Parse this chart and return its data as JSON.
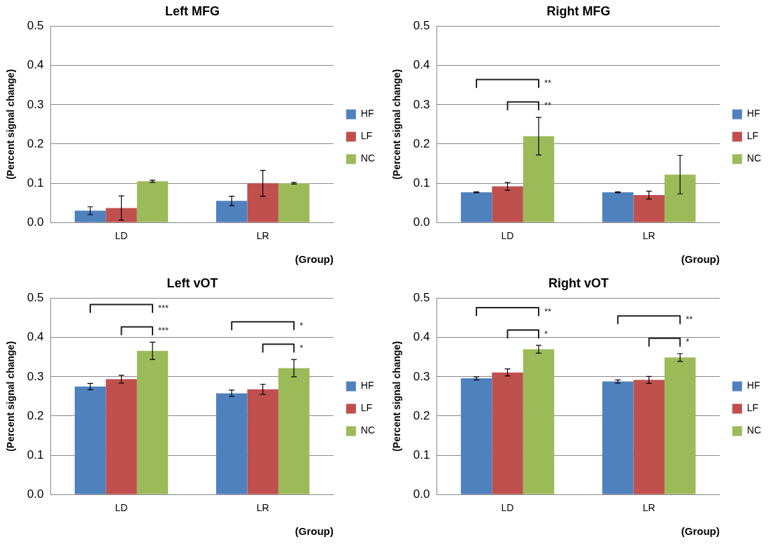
{
  "chart_data": [
    {
      "type": "bar",
      "title": "Left MFG",
      "xlabel": "(Group)",
      "ylabel": "(Percent signal change)",
      "categories": [
        "LD",
        "LR"
      ],
      "series": [
        {
          "name": "HF",
          "color": "#4f81bd",
          "values": [
            0.03,
            0.055
          ],
          "errors": [
            0.01,
            0.012
          ]
        },
        {
          "name": "LF",
          "color": "#c0504d",
          "values": [
            0.037,
            0.1
          ],
          "errors": [
            0.031,
            0.033
          ]
        },
        {
          "name": "NC",
          "color": "#9bbb59",
          "values": [
            0.105,
            0.1
          ],
          "errors": [
            0.003,
            0.002
          ]
        }
      ],
      "ylim": [
        0,
        0.5
      ],
      "yticks": [
        {
          "value": 0,
          "label": "0.0"
        },
        {
          "value": 0.1,
          "label": "0.1"
        },
        {
          "value": 0.2,
          "label": "0.2"
        },
        {
          "value": 0.3,
          "label": "0.3"
        },
        {
          "value": 0.4,
          "label": "0.4"
        },
        {
          "value": 0.5,
          "label": "0.5"
        }
      ],
      "grid": "y",
      "legend": "right"
    },
    {
      "type": "bar",
      "title": "Right MFG",
      "xlabel": "(Group)",
      "ylabel": "(Percent signal change)",
      "categories": [
        "LD",
        "LR"
      ],
      "series": [
        {
          "name": "HF",
          "color": "#4f81bd",
          "values": [
            0.077,
            0.077
          ],
          "errors": [
            0.001,
            0.001
          ]
        },
        {
          "name": "LF",
          "color": "#c0504d",
          "values": [
            0.092,
            0.07
          ],
          "errors": [
            0.01,
            0.01
          ]
        },
        {
          "name": "NC",
          "color": "#9bbb59",
          "values": [
            0.22,
            0.122
          ],
          "errors": [
            0.048,
            0.049
          ]
        }
      ],
      "ylim": [
        0,
        0.5
      ],
      "yticks": [
        {
          "value": 0,
          "label": "0.0"
        },
        {
          "value": 0.1,
          "label": "0.1"
        },
        {
          "value": 0.2,
          "label": "0.2"
        },
        {
          "value": 0.3,
          "label": "0.3"
        },
        {
          "value": 0.4,
          "label": "0.4"
        },
        {
          "value": 0.5,
          "label": "0.5"
        }
      ],
      "annotations": [
        "**",
        "**"
      ],
      "grid": "y",
      "legend": "right"
    },
    {
      "type": "bar",
      "title": "Left vOT",
      "xlabel": "(Group)",
      "ylabel": "(Percent signal change)",
      "categories": [
        "LD",
        "LR"
      ],
      "series": [
        {
          "name": "HF",
          "color": "#4f81bd",
          "values": [
            0.275,
            0.258
          ],
          "errors": [
            0.008,
            0.008
          ]
        },
        {
          "name": "LF",
          "color": "#c0504d",
          "values": [
            0.294,
            0.268
          ],
          "errors": [
            0.01,
            0.013
          ]
        },
        {
          "name": "NC",
          "color": "#9bbb59",
          "values": [
            0.366,
            0.322
          ],
          "errors": [
            0.022,
            0.022
          ]
        }
      ],
      "ylim": [
        0,
        0.5
      ],
      "yticks": [
        {
          "value": 0,
          "label": "0.0"
        },
        {
          "value": 0.1,
          "label": "0.1"
        },
        {
          "value": 0.2,
          "label": "0.2"
        },
        {
          "value": 0.3,
          "label": "0.3"
        },
        {
          "value": 0.4,
          "label": "0.4"
        },
        {
          "value": 0.5,
          "label": "0.5"
        }
      ],
      "annotations": [
        "***",
        "***",
        "*",
        "*"
      ],
      "grid": "y",
      "legend": "right"
    },
    {
      "type": "bar",
      "title": "Right vOT",
      "xlabel": "(Group)",
      "ylabel": "(Percent signal change)",
      "categories": [
        "LD",
        "LR"
      ],
      "series": [
        {
          "name": "HF",
          "color": "#4f81bd",
          "values": [
            0.296,
            0.288
          ],
          "errors": [
            0.004,
            0.004
          ]
        },
        {
          "name": "LF",
          "color": "#c0504d",
          "values": [
            0.311,
            0.292
          ],
          "errors": [
            0.009,
            0.009
          ]
        },
        {
          "name": "NC",
          "color": "#9bbb59",
          "values": [
            0.37,
            0.349
          ],
          "errors": [
            0.01,
            0.01
          ]
        }
      ],
      "ylim": [
        0,
        0.5
      ],
      "yticks": [
        {
          "value": 0,
          "label": "0.0"
        },
        {
          "value": 0.1,
          "label": "0.1"
        },
        {
          "value": 0.2,
          "label": "0.2"
        },
        {
          "value": 0.3,
          "label": "0.3"
        },
        {
          "value": 0.4,
          "label": "0.4"
        },
        {
          "value": 0.5,
          "label": "0.5"
        }
      ],
      "annotations": [
        "**",
        "*",
        "**",
        "*"
      ],
      "grid": "y",
      "legend": "right"
    }
  ]
}
